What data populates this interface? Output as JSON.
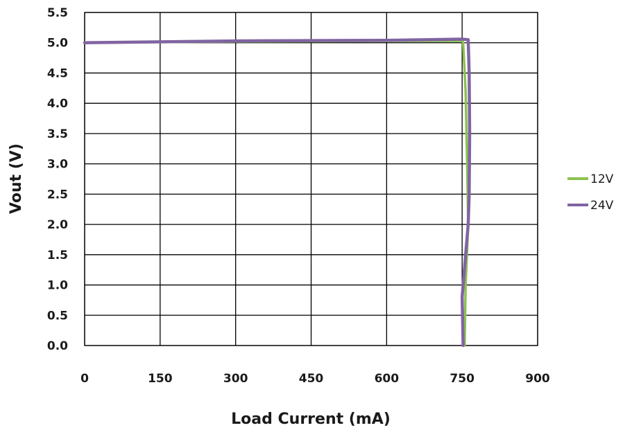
{
  "chart_data": {
    "type": "line",
    "title": "",
    "xlabel": "Load Current (mA)",
    "ylabel": "Vout (V)",
    "xlim": [
      0,
      900
    ],
    "ylim": [
      0,
      5.5
    ],
    "xticks": [
      "0",
      "150",
      "300",
      "450",
      "600",
      "750",
      "900"
    ],
    "yticks": [
      "0.0",
      "0.5",
      "1.0",
      "1.5",
      "2.0",
      "2.5",
      "3.0",
      "3.5",
      "4.0",
      "4.5",
      "5.0",
      "5.5"
    ],
    "grid": true,
    "legend_position": "right",
    "series": [
      {
        "name": "12V",
        "color": "#8cc152",
        "x": [
          0,
          300,
          600,
          750,
          752,
          757,
          760,
          762,
          760,
          757,
          756,
          755
        ],
        "y": [
          5.0,
          5.02,
          5.03,
          5.03,
          5.0,
          4.2,
          3.0,
          2.0,
          1.6,
          1.0,
          0.5,
          0.0
        ]
      },
      {
        "name": "24V",
        "color": "#8064a2",
        "x": [
          0,
          300,
          600,
          750,
          762,
          764,
          765,
          764,
          762,
          757,
          752,
          750,
          751,
          752
        ],
        "y": [
          5.0,
          5.03,
          5.04,
          5.06,
          5.05,
          4.5,
          3.5,
          2.5,
          2.0,
          1.5,
          1.0,
          0.8,
          0.4,
          0.0
        ]
      }
    ]
  }
}
